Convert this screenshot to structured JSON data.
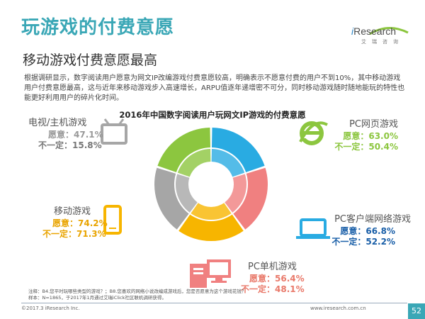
{
  "header": {
    "title": "玩游戏的付费意愿",
    "subtitle": "移动游戏付费意愿最高",
    "logo_brand_i": "i",
    "logo_brand_rest": "Research",
    "logo_cn": "艾瑞咨询"
  },
  "description": "根据调研显示，数字阅读用户愿意为网文IP改编游戏付费意愿较高，明确表示不愿意付费的用户不到10%，其中移动游戏用户付费意愿最高，这与近年来移动游戏步入高速增长，ARPU值逐年递增密不可分，同时移动游戏随时随地能玩的特性也能更好利用用户的碎片化时间。",
  "colors": {
    "title": "#3aa7b6",
    "web_game": "#8cc63f",
    "pc_client": "#29abe2",
    "pc_single": "#f08080",
    "mobile": "#f7b500",
    "tv_console": "#a6a6a6",
    "willing_text": "#e9a400",
    "unsure_text": "#1a5fa8"
  },
  "chart_data": {
    "type": "donut",
    "title": "2016年中国数字阅读用户玩网文IP游戏的付费意愿",
    "series": [
      {
        "name": "愿意",
        "ring": "outer"
      },
      {
        "name": "不一定",
        "ring": "inner"
      }
    ],
    "categories": [
      {
        "name": "PC网页游戏",
        "willing": 63.0,
        "unsure": 50.4,
        "willing_label": "愿意：63.0%",
        "unsure_label": "不一定：50.4%",
        "color": "#8cc63f",
        "icon": "ie-browser-icon"
      },
      {
        "name": "PC客户端网络游戏",
        "willing": 66.8,
        "unsure": 52.2,
        "willing_label": "愿意：66.8%",
        "unsure_label": "不一定：52.2%",
        "color": "#29abe2",
        "icon": "laptop-icon"
      },
      {
        "name": "PC单机游戏",
        "willing": 56.4,
        "unsure": 48.1,
        "willing_label": "愿意：56.4%",
        "unsure_label": "不一定：48.1%",
        "color": "#f08080",
        "icon": "desktop-pc-icon"
      },
      {
        "name": "移动游戏",
        "willing": 74.2,
        "unsure": 71.3,
        "willing_label": "愿意：74.2%",
        "unsure_label": "不一定：71.3%",
        "color": "#f7b500",
        "icon": "smartphone-icon"
      },
      {
        "name": "电视/主机游戏",
        "willing": 47.1,
        "unsure": 15.8,
        "willing_label": "愿意：47.1%",
        "unsure_label": "不一定：15.8%",
        "color": "#a6a6a6",
        "icon": "tv-icon"
      }
    ]
  },
  "footer": {
    "note_line1": "注释：B4.您平时玩哪些类型的游戏？；B8.您喜欢的网络小说改编成游戏后，您是否愿意为这个游戏花钱？",
    "note_line2": "样本：N=1865，于2017年1月通过艾瑞iClick社区联机调研获得。",
    "copyright": "©2017.3 iResearch Inc.",
    "site": "www.iresearch.com.cn",
    "page": "52"
  }
}
